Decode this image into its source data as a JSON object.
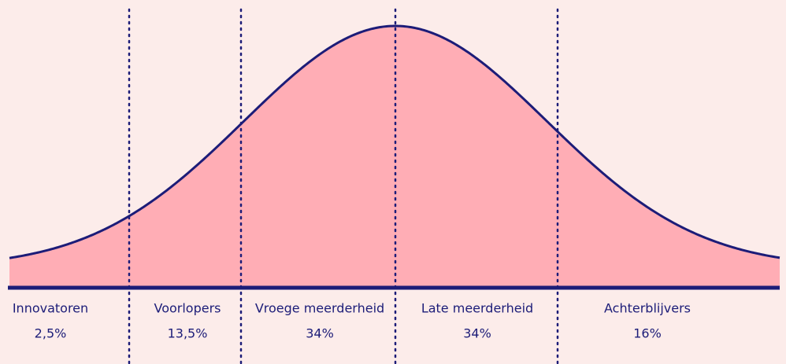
{
  "segments": [
    {
      "label": "Innovatoren",
      "share": "2,5%"
    },
    {
      "label": "Voorlopers",
      "share": "13,5%"
    },
    {
      "label": "Vroege meerderheid",
      "share": "34%"
    },
    {
      "label": "Late meerderheid",
      "share": "34%"
    },
    {
      "label": "Achterblijvers",
      "share": "16%"
    }
  ]
}
